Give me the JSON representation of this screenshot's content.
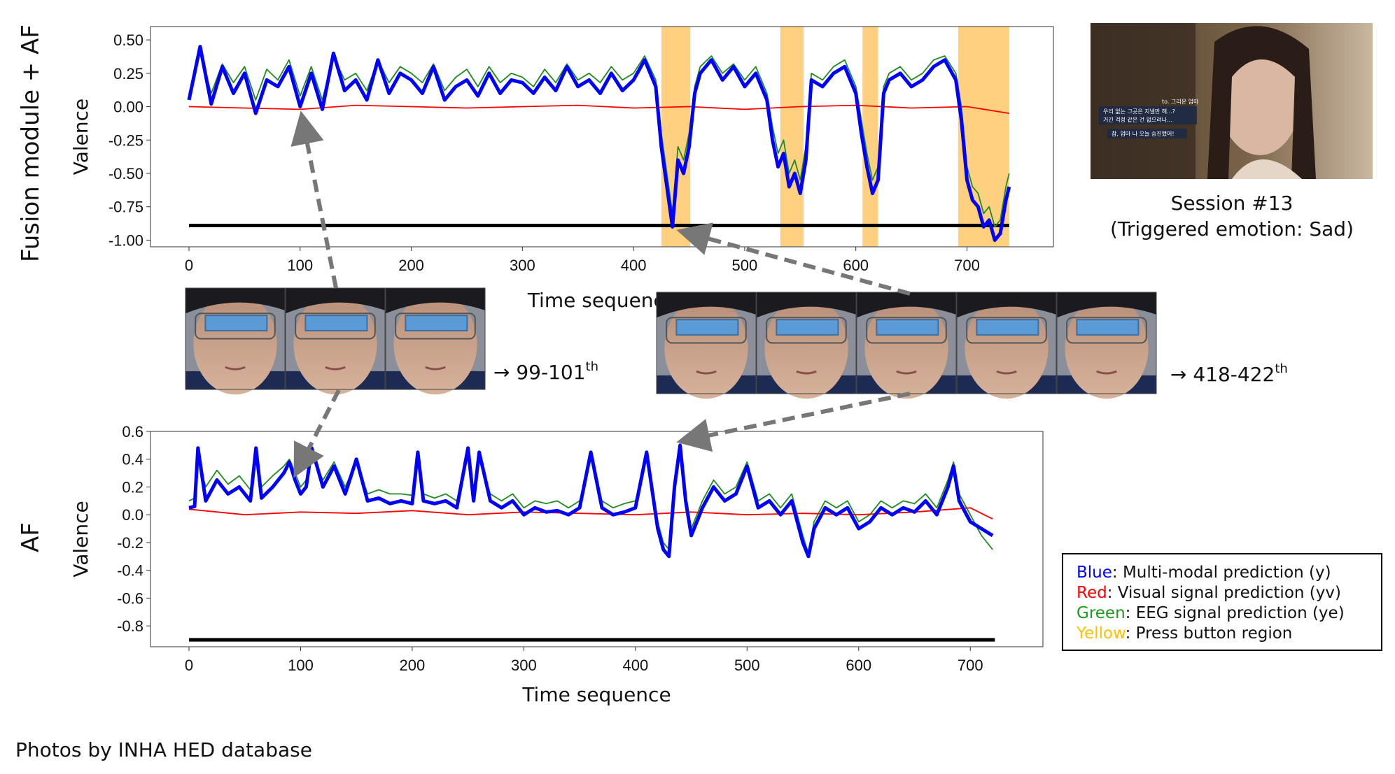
{
  "left_labels": {
    "top": "Fusion module  + AF",
    "bottom": "AF"
  },
  "session": {
    "title": "Session #13",
    "subtitle": "(Triggered emotion: Sad)"
  },
  "video_subtitles": [
    "to. 그리운 엄마",
    "우리 없는 그곳은 지낼만 해...?",
    "거긴 걱정 같은 건 없으려나...",
    "참, 엄마 나 오늘 승진했어!"
  ],
  "frame_labels": {
    "left": "→ 99-101",
    "left_sup": "th",
    "right": "→ 418-422",
    "right_sup": "th"
  },
  "legend": [
    {
      "color_word": "Blue",
      "text": ": Multi-modal prediction (y)",
      "color": "#0000ff"
    },
    {
      "color_word": "Red",
      "text": ":  Visual signal prediction (yv)",
      "color": "#ff0000"
    },
    {
      "color_word": "Green",
      "text": ": EEG signal prediction (ye)",
      "color": "#1e9a1e"
    },
    {
      "color_word": "Yellow",
      "text": ": Press button region",
      "color": "#ffc000"
    }
  ],
  "footer": "Photos by INHA HED database",
  "colors": {
    "multimodal": "#0000ff",
    "visual": "#ff0000",
    "eeg": "#1e8c1e",
    "press": "#ffd080",
    "baseline": "#000000",
    "arrow": "#777777"
  },
  "chart_data": [
    {
      "type": "line",
      "id": "fusion_af",
      "xlabel": "Time sequence",
      "ylabel": "Valence",
      "xlim": [
        0,
        740
      ],
      "ylim": [
        -1.05,
        0.6
      ],
      "xticks": [
        0,
        100,
        200,
        300,
        400,
        500,
        600,
        700
      ],
      "yticks": [
        0.5,
        0.25,
        0.0,
        -0.25,
        -0.5,
        -0.75,
        -1.0
      ],
      "ytick_labels": [
        "0.50",
        "0.25",
        "0.00",
        "-0.25",
        "-0.50",
        "-0.75",
        "-1.00"
      ],
      "press_regions": [
        [
          425,
          451
        ],
        [
          532,
          553
        ],
        [
          606,
          620
        ],
        [
          692,
          738
        ]
      ],
      "baseline": {
        "y": -0.89,
        "x": [
          0,
          738
        ]
      },
      "series": [
        {
          "name": "Blue",
          "x": [
            0,
            10,
            20,
            30,
            40,
            50,
            60,
            70,
            80,
            90,
            100,
            110,
            120,
            130,
            140,
            150,
            160,
            170,
            180,
            190,
            200,
            210,
            220,
            230,
            240,
            250,
            260,
            270,
            280,
            290,
            300,
            310,
            320,
            330,
            340,
            350,
            360,
            370,
            380,
            390,
            400,
            410,
            420,
            425,
            430,
            435,
            440,
            445,
            450,
            455,
            460,
            470,
            480,
            490,
            500,
            510,
            520,
            525,
            530,
            535,
            540,
            545,
            550,
            555,
            560,
            570,
            580,
            590,
            600,
            605,
            610,
            615,
            620,
            625,
            630,
            640,
            650,
            660,
            670,
            680,
            690,
            695,
            700,
            705,
            710,
            715,
            720,
            725,
            730,
            735,
            738
          ],
          "y": [
            0.05,
            0.45,
            0.02,
            0.3,
            0.1,
            0.25,
            -0.05,
            0.2,
            0.15,
            0.3,
            0.0,
            0.25,
            -0.02,
            0.4,
            0.12,
            0.2,
            0.05,
            0.35,
            0.1,
            0.25,
            0.2,
            0.1,
            0.3,
            0.05,
            0.15,
            0.2,
            0.08,
            0.25,
            0.1,
            0.2,
            0.18,
            0.1,
            0.22,
            0.12,
            0.3,
            0.15,
            0.2,
            0.1,
            0.25,
            0.12,
            0.2,
            0.35,
            0.15,
            -0.3,
            -0.6,
            -0.9,
            -0.4,
            -0.5,
            -0.3,
            0.1,
            0.25,
            0.35,
            0.2,
            0.3,
            0.15,
            0.25,
            0.05,
            -0.25,
            -0.45,
            -0.35,
            -0.6,
            -0.5,
            -0.65,
            -0.4,
            0.2,
            0.15,
            0.25,
            0.3,
            0.1,
            -0.2,
            -0.45,
            -0.65,
            -0.55,
            0.1,
            0.2,
            0.25,
            0.15,
            0.2,
            0.3,
            0.35,
            0.2,
            -0.1,
            -0.55,
            -0.7,
            -0.75,
            -0.9,
            -0.85,
            -1.0,
            -0.95,
            -0.7,
            -0.6
          ]
        },
        {
          "name": "Red",
          "x": [
            0,
            50,
            100,
            150,
            200,
            250,
            300,
            350,
            400,
            450,
            500,
            550,
            600,
            650,
            700,
            738
          ],
          "y": [
            0.0,
            -0.01,
            -0.02,
            0.01,
            0.0,
            -0.01,
            0.0,
            0.01,
            -0.01,
            0.0,
            -0.02,
            0.0,
            0.01,
            -0.01,
            0.0,
            -0.05
          ]
        },
        {
          "name": "Green",
          "x": [
            0,
            10,
            20,
            30,
            40,
            50,
            60,
            70,
            80,
            90,
            100,
            110,
            120,
            130,
            140,
            150,
            160,
            170,
            180,
            190,
            200,
            210,
            220,
            230,
            240,
            250,
            260,
            270,
            280,
            290,
            300,
            310,
            320,
            330,
            340,
            350,
            360,
            370,
            380,
            390,
            400,
            410,
            420,
            425,
            430,
            435,
            440,
            445,
            450,
            455,
            460,
            470,
            480,
            490,
            500,
            510,
            520,
            525,
            530,
            535,
            540,
            545,
            550,
            555,
            560,
            570,
            580,
            590,
            600,
            605,
            610,
            615,
            620,
            625,
            630,
            640,
            650,
            660,
            670,
            680,
            690,
            695,
            700,
            705,
            710,
            715,
            720,
            725,
            730,
            735,
            738
          ],
          "y": [
            0.1,
            0.4,
            0.1,
            0.32,
            0.18,
            0.3,
            0.05,
            0.28,
            0.2,
            0.35,
            0.08,
            0.3,
            0.05,
            0.38,
            0.2,
            0.25,
            0.12,
            0.35,
            0.18,
            0.3,
            0.25,
            0.18,
            0.32,
            0.12,
            0.22,
            0.28,
            0.15,
            0.3,
            0.18,
            0.25,
            0.22,
            0.15,
            0.28,
            0.18,
            0.32,
            0.2,
            0.25,
            0.18,
            0.3,
            0.2,
            0.25,
            0.38,
            0.2,
            -0.2,
            -0.5,
            -0.8,
            -0.3,
            -0.4,
            -0.2,
            0.15,
            0.3,
            0.38,
            0.25,
            0.32,
            0.2,
            0.3,
            0.1,
            -0.15,
            -0.35,
            -0.25,
            -0.5,
            -0.4,
            -0.55,
            -0.3,
            0.25,
            0.2,
            0.3,
            0.35,
            0.15,
            -0.1,
            -0.35,
            -0.55,
            -0.45,
            0.15,
            0.25,
            0.3,
            0.2,
            0.25,
            0.35,
            0.38,
            0.25,
            0.0,
            -0.45,
            -0.6,
            -0.65,
            -0.8,
            -0.75,
            -0.9,
            -0.85,
            -0.6,
            -0.5
          ]
        }
      ]
    },
    {
      "type": "line",
      "id": "af",
      "xlabel": "Time sequence",
      "ylabel": "Valence",
      "xlim": [
        0,
        740
      ],
      "ylim": [
        -0.95,
        0.6
      ],
      "xticks": [
        0,
        100,
        200,
        300,
        400,
        500,
        600,
        700
      ],
      "yticks": [
        0.6,
        0.4,
        0.2,
        0.0,
        -0.2,
        -0.4,
        -0.6,
        -0.8
      ],
      "ytick_labels": [
        "0.6",
        "0.4",
        "0.2",
        "0.0",
        "-0.2",
        "-0.4",
        "-0.6",
        "-0.8"
      ],
      "baseline": {
        "y": -0.9,
        "x": [
          0,
          722
        ]
      },
      "series": [
        {
          "name": "Blue",
          "x": [
            0,
            5,
            8,
            15,
            25,
            35,
            45,
            55,
            60,
            65,
            75,
            85,
            90,
            95,
            100,
            105,
            110,
            120,
            130,
            140,
            150,
            160,
            170,
            180,
            190,
            200,
            205,
            210,
            220,
            230,
            240,
            250,
            255,
            260,
            270,
            280,
            290,
            300,
            310,
            320,
            330,
            340,
            350,
            360,
            370,
            380,
            390,
            400,
            410,
            420,
            425,
            430,
            435,
            440,
            445,
            450,
            460,
            470,
            480,
            490,
            500,
            510,
            520,
            530,
            540,
            550,
            555,
            560,
            570,
            580,
            590,
            600,
            610,
            620,
            630,
            640,
            650,
            660,
            670,
            680,
            685,
            690,
            700,
            710,
            720
          ],
          "y": [
            0.05,
            0.06,
            0.48,
            0.1,
            0.25,
            0.15,
            0.2,
            0.1,
            0.48,
            0.12,
            0.2,
            0.3,
            0.38,
            0.25,
            0.15,
            0.2,
            0.48,
            0.2,
            0.35,
            0.15,
            0.4,
            0.1,
            0.12,
            0.08,
            0.1,
            0.08,
            0.45,
            0.1,
            0.08,
            0.1,
            0.05,
            0.48,
            0.1,
            0.45,
            0.1,
            0.05,
            0.1,
            0.0,
            0.05,
            0.02,
            0.03,
            0.0,
            0.05,
            0.45,
            0.05,
            0.0,
            0.02,
            0.05,
            0.45,
            -0.1,
            -0.25,
            -0.3,
            0.2,
            0.5,
            0.1,
            -0.15,
            0.05,
            0.2,
            0.1,
            0.15,
            0.35,
            0.05,
            0.1,
            0.0,
            0.1,
            -0.2,
            -0.3,
            -0.1,
            0.05,
            0.0,
            0.05,
            -0.1,
            -0.05,
            0.05,
            0.0,
            0.05,
            0.02,
            0.1,
            0.0,
            0.2,
            0.35,
            0.1,
            -0.05,
            -0.1,
            -0.15
          ]
        },
        {
          "name": "Red",
          "x": [
            0,
            50,
            100,
            150,
            200,
            250,
            300,
            350,
            400,
            450,
            500,
            550,
            600,
            650,
            700,
            720
          ],
          "y": [
            0.04,
            0.0,
            0.02,
            0.01,
            0.03,
            0.0,
            0.02,
            0.01,
            0.0,
            0.02,
            0.0,
            0.01,
            0.0,
            0.02,
            0.05,
            -0.03
          ]
        },
        {
          "name": "Green",
          "x": [
            0,
            5,
            8,
            15,
            25,
            35,
            45,
            55,
            60,
            65,
            75,
            85,
            90,
            95,
            100,
            105,
            110,
            120,
            130,
            140,
            150,
            160,
            170,
            180,
            190,
            200,
            205,
            210,
            220,
            230,
            240,
            250,
            255,
            260,
            270,
            280,
            290,
            300,
            310,
            320,
            330,
            340,
            350,
            360,
            370,
            380,
            390,
            400,
            410,
            420,
            425,
            430,
            435,
            440,
            445,
            450,
            460,
            470,
            480,
            490,
            500,
            510,
            520,
            530,
            540,
            550,
            555,
            560,
            570,
            580,
            590,
            600,
            610,
            620,
            630,
            640,
            650,
            660,
            670,
            680,
            685,
            690,
            700,
            710,
            720
          ],
          "y": [
            0.1,
            0.12,
            0.4,
            0.2,
            0.32,
            0.22,
            0.28,
            0.18,
            0.45,
            0.2,
            0.28,
            0.35,
            0.4,
            0.3,
            0.2,
            0.25,
            0.42,
            0.25,
            0.38,
            0.2,
            0.38,
            0.15,
            0.18,
            0.15,
            0.15,
            0.14,
            0.4,
            0.15,
            0.12,
            0.15,
            0.1,
            0.42,
            0.15,
            0.4,
            0.15,
            0.1,
            0.15,
            0.05,
            0.1,
            0.08,
            0.1,
            0.05,
            0.1,
            0.4,
            0.1,
            0.05,
            0.08,
            0.1,
            0.4,
            -0.05,
            -0.2,
            -0.25,
            0.25,
            0.45,
            0.15,
            -0.1,
            0.1,
            0.25,
            0.15,
            0.2,
            0.38,
            0.1,
            0.15,
            0.05,
            0.15,
            -0.15,
            -0.28,
            -0.05,
            0.1,
            0.05,
            0.1,
            -0.05,
            0.0,
            0.1,
            0.05,
            0.1,
            0.08,
            0.15,
            0.05,
            0.25,
            0.38,
            0.15,
            0.0,
            -0.15,
            -0.25
          ]
        }
      ]
    }
  ]
}
